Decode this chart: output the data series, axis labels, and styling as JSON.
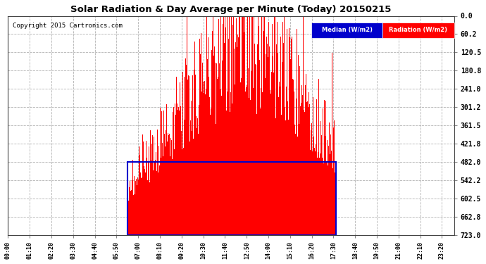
{
  "title": "Solar Radiation & Day Average per Minute (Today) 20150215",
  "copyright": "Copyright 2015 Cartronics.com",
  "ylabel_right": [
    "723.0",
    "662.8",
    "602.5",
    "542.2",
    "482.0",
    "421.8",
    "361.5",
    "301.2",
    "241.0",
    "180.8",
    "120.5",
    "60.2",
    "0.0"
  ],
  "ymax": 723.0,
  "ymin": 0.0,
  "yticks": [
    0.0,
    60.2,
    120.5,
    180.8,
    241.0,
    301.2,
    361.5,
    421.8,
    482.0,
    542.2,
    602.5,
    662.8,
    723.0
  ],
  "bg_color": "#ffffff",
  "plot_bg": "#ffffff",
  "bar_color": "#ff0000",
  "median_rect_color": "#0000cc",
  "grid_color": "#aaaaaa",
  "legend_median_label": "Median (W/m2)",
  "legend_radiation_label": "Radiation (W/m2)",
  "legend_median_bg": "#0000cc",
  "legend_radiation_bg": "#ff0000",
  "tick_interval_minutes": 70,
  "sunrise_minute": 385,
  "sunset_minute": 1058,
  "peak_minute": 770,
  "peak_val": 723.0,
  "median_val": 241.0,
  "n_minutes": 1440,
  "seed1": 42,
  "seed2": 123
}
